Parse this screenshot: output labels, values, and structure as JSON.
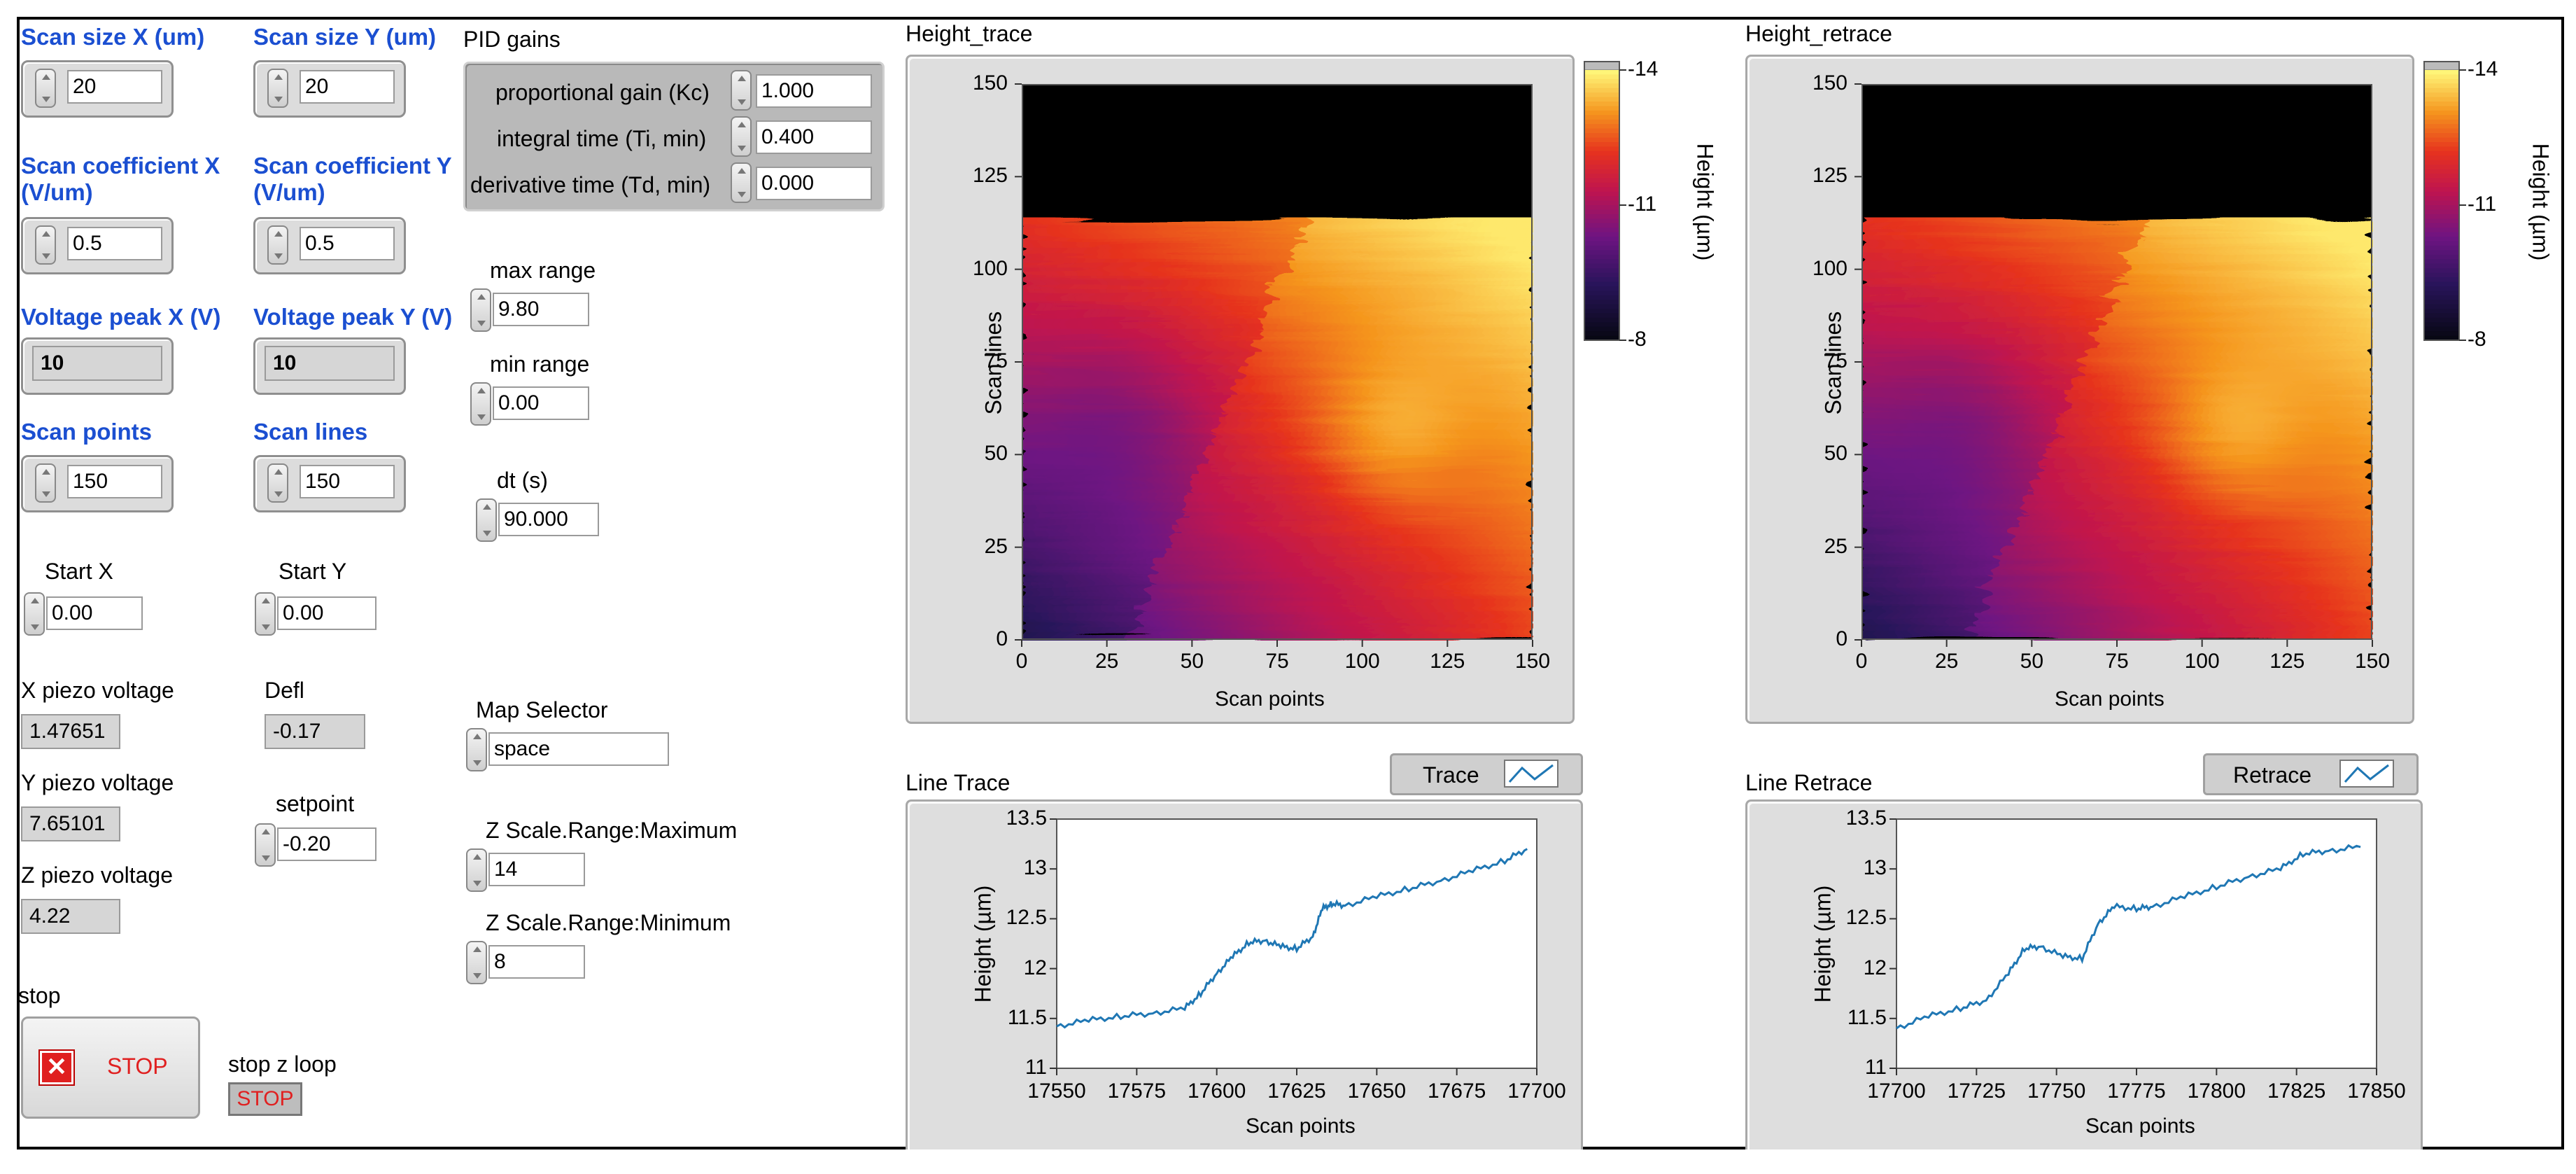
{
  "left": {
    "scan_size_x": {
      "label": "Scan size X (um)",
      "value": "20"
    },
    "scan_size_y": {
      "label": "Scan size Y (um)",
      "value": "20"
    },
    "scan_coeff_x": {
      "label1": "Scan coefficient X",
      "label2": "(V/um)",
      "value": "0.5"
    },
    "scan_coeff_y": {
      "label1": "Scan coefficient Y",
      "label2": "(V/um)",
      "value": "0.5"
    },
    "vpeak_x": {
      "label": "Voltage peak X (V)",
      "value": "10"
    },
    "vpeak_y": {
      "label": "Voltage peak Y (V)",
      "value": "10"
    },
    "scan_points": {
      "label": "Scan points",
      "value": "150"
    },
    "scan_lines": {
      "label": "Scan lines",
      "value": "150"
    },
    "start_x": {
      "label": "Start X",
      "value": "0.00"
    },
    "start_y": {
      "label": "Start Y",
      "value": "0.00"
    },
    "x_piezo": {
      "label": "X piezo voltage",
      "value": "1.47651"
    },
    "y_piezo": {
      "label": "Y piezo voltage",
      "value": "7.65101"
    },
    "z_piezo": {
      "label": "Z piezo voltage",
      "value": "4.22"
    },
    "defl": {
      "label": "Defl",
      "value": "-0.17"
    },
    "setpoint": {
      "label": "setpoint",
      "value": "-0.20"
    },
    "stop": {
      "label": "stop",
      "button": "STOP"
    },
    "stop_z": {
      "label": "stop z loop",
      "button": "STOP"
    }
  },
  "pid": {
    "title": "PID gains",
    "kc": {
      "label": "proportional gain (Kc)",
      "value": "1.000"
    },
    "ti": {
      "label": "integral time (Ti, min)",
      "value": "0.400"
    },
    "td": {
      "label": "derivative time (Td, min)",
      "value": "0.000"
    }
  },
  "mid": {
    "max_range": {
      "label": "max range",
      "value": "9.80"
    },
    "min_range": {
      "label": "min range",
      "value": "0.00"
    },
    "dt": {
      "label": "dt (s)",
      "value": "90.000"
    },
    "map_selector": {
      "label": "Map Selector",
      "value": "space"
    },
    "zmax": {
      "label": "Z Scale.Range:Maximum",
      "value": "14"
    },
    "zmin": {
      "label": "Z Scale.Range:Minimum",
      "value": "8"
    }
  },
  "colors": {
    "label_blue": "#1b4fd1",
    "plot_line": "#1f77b4",
    "stop_red": "#e02020"
  },
  "chart_data": [
    {
      "type": "heatmap",
      "title": "Height_trace",
      "xlabel": "Scan points",
      "ylabel": "Scan lines",
      "xlim": [
        0,
        150
      ],
      "ylim": [
        0,
        150
      ],
      "xticks": [
        "0",
        "25",
        "50",
        "75",
        "100",
        "125",
        "150"
      ],
      "yticks": [
        "0",
        "25",
        "50",
        "75",
        "100",
        "125",
        "150"
      ],
      "colorbar": {
        "label": "Height (µm)",
        "ticks": [
          "-14",
          "-11",
          "-8"
        ],
        "colormap": "black-purple-red-orange-yellow"
      },
      "scanned_lines": 114
    },
    {
      "type": "heatmap",
      "title": "Height_retrace",
      "xlabel": "Scan points",
      "ylabel": "Scan lines",
      "xlim": [
        0,
        150
      ],
      "ylim": [
        0,
        150
      ],
      "xticks": [
        "0",
        "25",
        "50",
        "75",
        "100",
        "125",
        "150"
      ],
      "yticks": [
        "0",
        "25",
        "50",
        "75",
        "100",
        "125",
        "150"
      ],
      "colorbar": {
        "label": "Height (µm)",
        "ticks": [
          "-14",
          "-11",
          "-8"
        ],
        "colormap": "black-purple-red-orange-yellow"
      },
      "scanned_lines": 114
    },
    {
      "type": "line",
      "title": "Line Trace",
      "legend": "Trace",
      "xlabel": "Scan points",
      "ylabel": "Height (µm)",
      "xlim": [
        17550,
        17700
      ],
      "ylim": [
        11,
        13.5
      ],
      "xticks": [
        "17550",
        "17575",
        "17600",
        "17625",
        "17650",
        "17675",
        "17700"
      ],
      "yticks": [
        "11",
        "11.5",
        "12",
        "12.5",
        "13",
        "13.5"
      ],
      "x": [
        17550,
        17560,
        17570,
        17580,
        17590,
        17595,
        17600,
        17605,
        17610,
        17615,
        17620,
        17625,
        17630,
        17633,
        17636,
        17640,
        17650,
        17660,
        17670,
        17680,
        17690,
        17697
      ],
      "y": [
        11.42,
        11.48,
        11.52,
        11.55,
        11.6,
        11.75,
        11.95,
        12.12,
        12.26,
        12.28,
        12.22,
        12.2,
        12.32,
        12.6,
        12.65,
        12.63,
        12.72,
        12.8,
        12.88,
        12.98,
        13.08,
        13.2
      ]
    },
    {
      "type": "line",
      "title": "Line Retrace",
      "legend": "Retrace",
      "xlabel": "Scan points",
      "ylabel": "Height (µm)",
      "xlim": [
        17700,
        17850
      ],
      "ylim": [
        11,
        13.5
      ],
      "xticks": [
        "17700",
        "17725",
        "17750",
        "17775",
        "17800",
        "17825",
        "17850"
      ],
      "yticks": [
        "11",
        "11.5",
        "12",
        "12.5",
        "13",
        "13.5"
      ],
      "x": [
        17700,
        17710,
        17720,
        17728,
        17735,
        17740,
        17745,
        17752,
        17758,
        17763,
        17768,
        17775,
        17780,
        17790,
        17800,
        17810,
        17820,
        17827,
        17835,
        17845
      ],
      "y": [
        11.4,
        11.52,
        11.6,
        11.68,
        11.95,
        12.2,
        12.22,
        12.12,
        12.1,
        12.45,
        12.62,
        12.6,
        12.62,
        12.72,
        12.82,
        12.92,
        13.0,
        13.15,
        13.18,
        13.22
      ]
    }
  ]
}
